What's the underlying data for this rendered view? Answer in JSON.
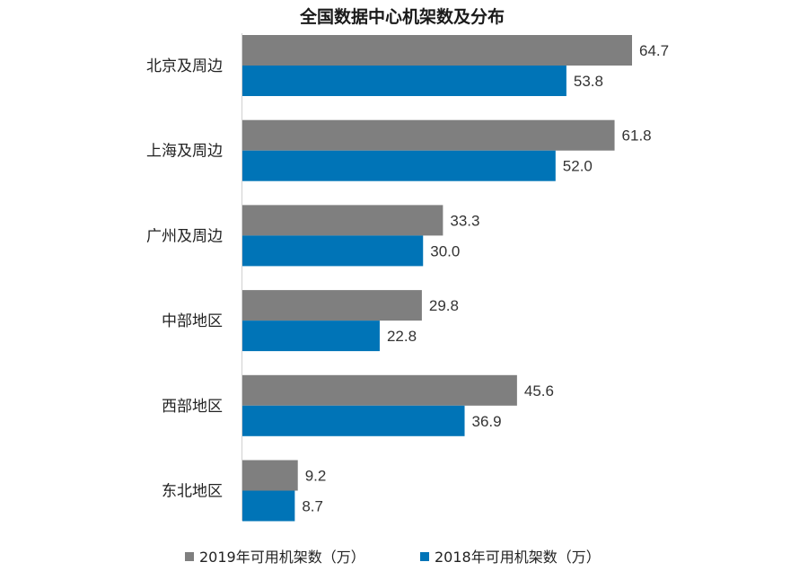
{
  "chart_data": {
    "type": "bar",
    "orientation": "horizontal",
    "title": "全国数据中心机架数及分布",
    "categories": [
      "北京及周边",
      "上海及周边",
      "广州及周边",
      "中部地区",
      "西部地区",
      "东北地区"
    ],
    "series": [
      {
        "name": "2019年可用机架数（万）",
        "color": "#7f7f7f",
        "values": [
          64.7,
          61.8,
          33.3,
          29.8,
          45.6,
          9.2
        ],
        "labels": [
          "64.7",
          "61.8",
          "33.3",
          "29.8",
          "45.6",
          "9.2"
        ]
      },
      {
        "name": "2018年可用机架数（万）",
        "color": "#0074b7",
        "values": [
          53.8,
          52.0,
          30.0,
          22.8,
          36.9,
          8.7
        ],
        "labels": [
          "53.8",
          "52.0",
          "30.0",
          "22.8",
          "36.9",
          "8.7"
        ]
      }
    ],
    "xlim": [
      0,
      70
    ],
    "grid": false,
    "legend_position": "bottom"
  }
}
